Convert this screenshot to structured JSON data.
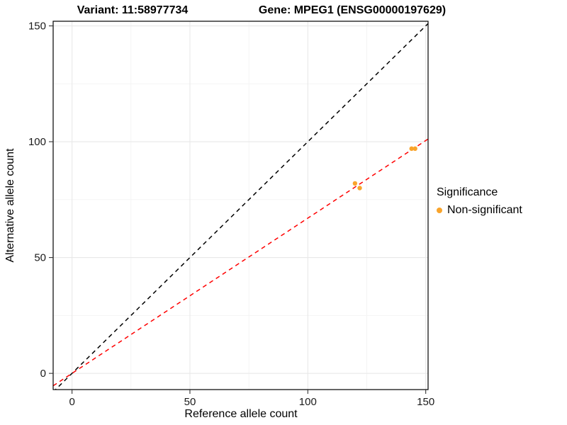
{
  "chart_data": {
    "type": "scatter",
    "title_left": "Variant: 11:58977734",
    "title_right": "Gene: MPEG1 (ENSG00000197629)",
    "xlabel": "Reference allele count",
    "ylabel": "Alternative allele count",
    "xlim": [
      -8,
      151
    ],
    "ylim": [
      -7,
      152
    ],
    "x_ticks": [
      0,
      50,
      100,
      150
    ],
    "y_ticks": [
      0,
      50,
      100,
      150
    ],
    "x_minor_ticks": [
      25,
      75,
      125
    ],
    "y_minor_ticks": [
      25,
      75,
      125
    ],
    "grid": true,
    "points": {
      "series_name": "Non-significant",
      "color": "#F9A42B",
      "radius": 3.2,
      "data": [
        {
          "x": 120,
          "y": 82
        },
        {
          "x": 122,
          "y": 80
        },
        {
          "x": 144,
          "y": 97
        },
        {
          "x": 145.5,
          "y": 97
        }
      ]
    },
    "lines": [
      {
        "name": "identity-line",
        "slope": 1,
        "intercept": 0,
        "color": "#000000",
        "dash": "6 5"
      },
      {
        "name": "fit-line",
        "slope": 0.67,
        "intercept": 0,
        "color": "#FF0000",
        "dash": "6 5"
      }
    ],
    "legend": {
      "title": "Significance",
      "position": "right",
      "entries": [
        {
          "label": "Non-significant",
          "color": "#F9A42B"
        }
      ]
    },
    "colors": {
      "background": "#FFFFFF",
      "grid_major": "#E8E8E8",
      "grid_minor": "#F3F3F3",
      "panel_border": "#000000",
      "tick": "#333333",
      "tick_label": "#1A1A1A"
    }
  }
}
